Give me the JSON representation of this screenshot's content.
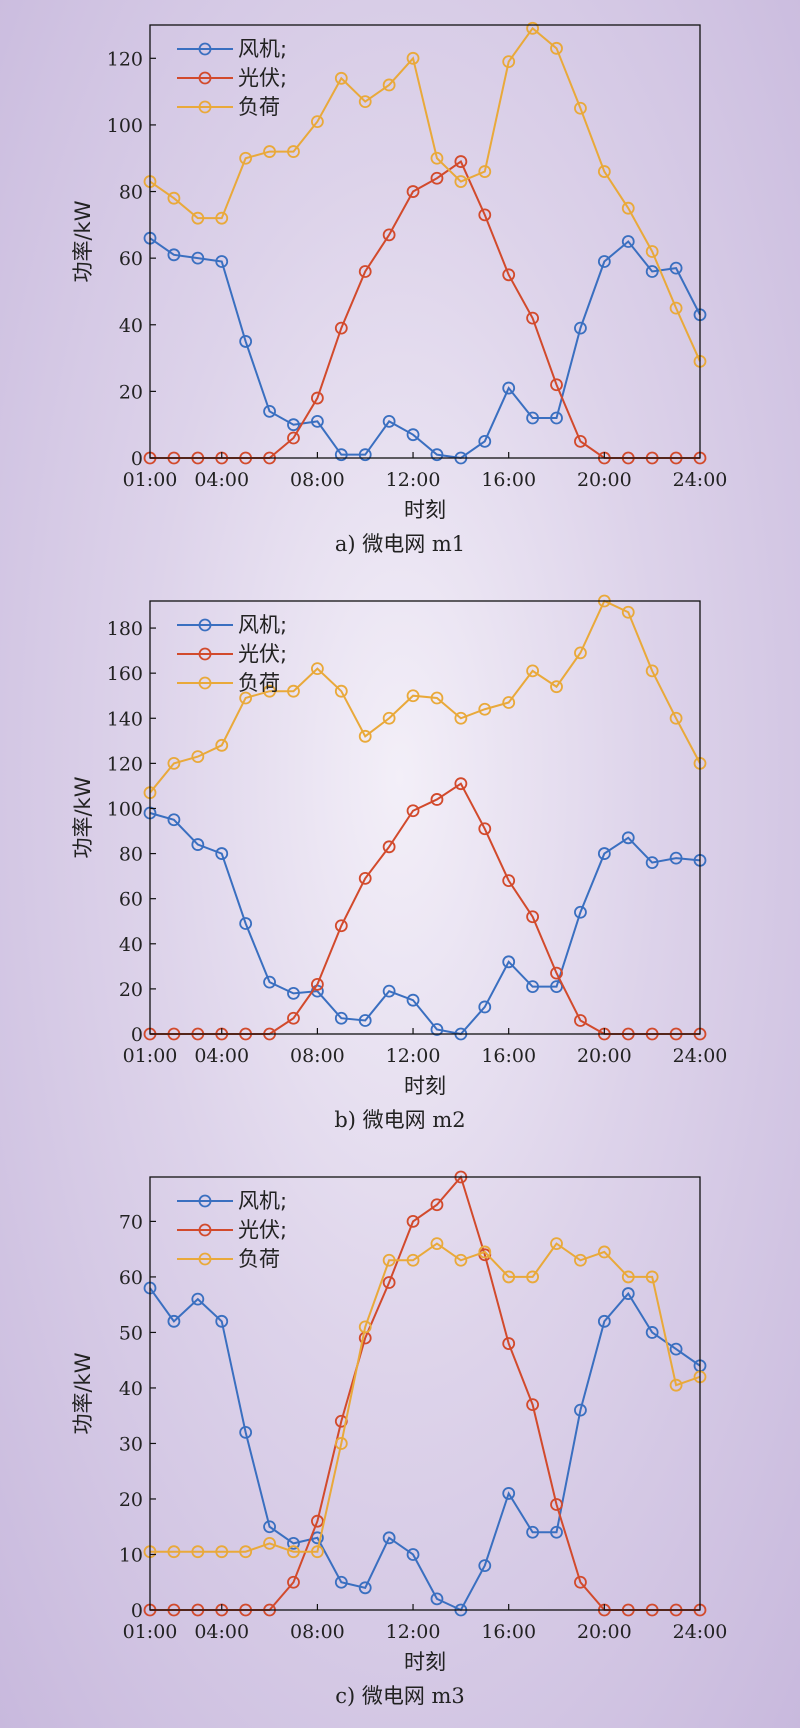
{
  "chart_data": [
    {
      "type": "line",
      "caption": "a) 微电网 m1",
      "xlabel": "时刻",
      "ylabel": "功率/kW",
      "x": [
        1,
        2,
        3,
        4,
        5,
        6,
        7,
        8,
        9,
        10,
        11,
        12,
        13,
        14,
        15,
        16,
        17,
        18,
        19,
        20,
        21,
        22,
        23,
        24
      ],
      "xticks": [
        {
          "x": 1,
          "label": "01:00"
        },
        {
          "x": 4,
          "label": "04:00"
        },
        {
          "x": 8,
          "label": "08:00"
        },
        {
          "x": 12,
          "label": "12:00"
        },
        {
          "x": 16,
          "label": "16:00"
        },
        {
          "x": 20,
          "label": "20:00"
        },
        {
          "x": 24,
          "label": "24:00"
        }
      ],
      "xlim": [
        1,
        24
      ],
      "ylim": [
        0,
        130
      ],
      "yticks": [
        0,
        20,
        40,
        60,
        80,
        100,
        120
      ],
      "legend_position": "top-left",
      "series": [
        {
          "name": "风机;",
          "color": "#3a6fc0",
          "values": [
            66,
            61,
            60,
            59,
            35,
            14,
            10,
            11,
            1,
            1,
            11,
            7,
            1,
            0,
            5,
            21,
            12,
            12,
            39,
            59,
            65,
            56,
            57,
            43
          ]
        },
        {
          "name": "光伏;",
          "color": "#d24a2c",
          "values": [
            0,
            0,
            0,
            0,
            0,
            0,
            6,
            18,
            39,
            56,
            67,
            80,
            84,
            89,
            73,
            55,
            42,
            22,
            5,
            0,
            0,
            0,
            0,
            0
          ]
        },
        {
          "name": "负荷",
          "color": "#e9a93a",
          "values": [
            83,
            78,
            72,
            72,
            90,
            92,
            92,
            101,
            114,
            107,
            112,
            120,
            90,
            83,
            86,
            119,
            129,
            123,
            105,
            86,
            75,
            62,
            45,
            29
          ]
        }
      ]
    },
    {
      "type": "line",
      "caption": "b) 微电网 m2",
      "xlabel": "时刻",
      "ylabel": "功率/kW",
      "x": [
        1,
        2,
        3,
        4,
        5,
        6,
        7,
        8,
        9,
        10,
        11,
        12,
        13,
        14,
        15,
        16,
        17,
        18,
        19,
        20,
        21,
        22,
        23,
        24
      ],
      "xticks": [
        {
          "x": 1,
          "label": "01:00"
        },
        {
          "x": 4,
          "label": "04:00"
        },
        {
          "x": 8,
          "label": "08:00"
        },
        {
          "x": 12,
          "label": "12:00"
        },
        {
          "x": 16,
          "label": "16:00"
        },
        {
          "x": 20,
          "label": "20:00"
        },
        {
          "x": 24,
          "label": "24:00"
        }
      ],
      "xlim": [
        1,
        24
      ],
      "ylim": [
        0,
        192
      ],
      "yticks": [
        0,
        20,
        40,
        60,
        80,
        100,
        120,
        140,
        160,
        180
      ],
      "legend_position": "top-left",
      "series": [
        {
          "name": "风机;",
          "color": "#3a6fc0",
          "values": [
            98,
            95,
            84,
            80,
            49,
            23,
            18,
            19,
            7,
            6,
            19,
            15,
            2,
            0,
            12,
            32,
            21,
            21,
            54,
            80,
            87,
            76,
            78,
            77
          ]
        },
        {
          "name": "光伏;",
          "color": "#d24a2c",
          "values": [
            0,
            0,
            0,
            0,
            0,
            0,
            7,
            22,
            48,
            69,
            83,
            99,
            104,
            111,
            91,
            68,
            52,
            27,
            6,
            0,
            0,
            0,
            0,
            0
          ]
        },
        {
          "name": "负荷",
          "color": "#e9a93a",
          "values": [
            107,
            120,
            123,
            128,
            149,
            152,
            152,
            162,
            152,
            132,
            140,
            150,
            149,
            140,
            144,
            147,
            161,
            154,
            169,
            192,
            187,
            161,
            140,
            120
          ]
        }
      ]
    },
    {
      "type": "line",
      "caption": "c) 微电网 m3",
      "xlabel": "时刻",
      "ylabel": "功率/kW",
      "x": [
        1,
        2,
        3,
        4,
        5,
        6,
        7,
        8,
        9,
        10,
        11,
        12,
        13,
        14,
        15,
        16,
        17,
        18,
        19,
        20,
        21,
        22,
        23,
        24
      ],
      "xticks": [
        {
          "x": 1,
          "label": "01:00"
        },
        {
          "x": 4,
          "label": "04:00"
        },
        {
          "x": 8,
          "label": "08:00"
        },
        {
          "x": 12,
          "label": "12:00"
        },
        {
          "x": 16,
          "label": "16:00"
        },
        {
          "x": 20,
          "label": "20:00"
        },
        {
          "x": 24,
          "label": "24:00"
        }
      ],
      "xlim": [
        1,
        24
      ],
      "ylim": [
        0,
        78
      ],
      "yticks": [
        0,
        10,
        20,
        30,
        40,
        50,
        60,
        70
      ],
      "legend_position": "top-left",
      "series": [
        {
          "name": "风机;",
          "color": "#3a6fc0",
          "values": [
            58,
            52,
            56,
            52,
            32,
            15,
            12,
            13,
            5,
            4,
            13,
            10,
            2,
            0,
            8,
            21,
            14,
            14,
            36,
            52,
            57,
            50,
            47,
            44
          ]
        },
        {
          "name": "光伏;",
          "color": "#d24a2c",
          "values": [
            0,
            0,
            0,
            0,
            0,
            0,
            5,
            16,
            34,
            49,
            59,
            70,
            73,
            78,
            64,
            48,
            37,
            19,
            5,
            0,
            0,
            0,
            0,
            0
          ]
        },
        {
          "name": "负荷",
          "color": "#e9a93a",
          "values": [
            10.5,
            10.5,
            10.5,
            10.5,
            10.5,
            12,
            10.5,
            10.5,
            30,
            51,
            63,
            63,
            66,
            63,
            64.5,
            60,
            60,
            66,
            63,
            64.5,
            60,
            60,
            40.5,
            42
          ]
        }
      ]
    }
  ]
}
